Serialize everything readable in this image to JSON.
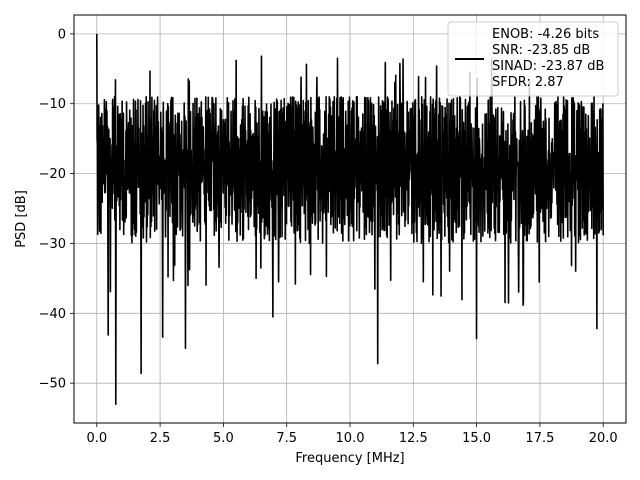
{
  "chart_data": {
    "type": "line",
    "xlabel": "Frequency [MHz]",
    "ylabel": "PSD [dB]",
    "xlim": [
      -0.9,
      20.9
    ],
    "ylim": [
      -55.7,
      2.7
    ],
    "xticks": [
      0.0,
      2.5,
      5.0,
      7.5,
      10.0,
      12.5,
      15.0,
      17.5,
      20.0
    ],
    "xtick_labels": [
      "0.0",
      "2.5",
      "5.0",
      "7.5",
      "10.0",
      "12.5",
      "15.0",
      "17.5",
      "20.0"
    ],
    "yticks": [
      0,
      -10,
      -20,
      -30,
      -40,
      -50
    ],
    "ytick_labels": [
      "0",
      "−10",
      "−20",
      "−30",
      "−40",
      "−50"
    ],
    "grid": true,
    "legend_position": "upper-right",
    "series": [
      {
        "color": "#000000",
        "legend_lines": [
          "ENOB: -4.26 bits",
          "SNR: -23.85 dB",
          "SINAD: -23.87 dB",
          "SFDR: 2.87"
        ],
        "x_range": [
          0.0,
          20.0
        ],
        "num_points": 1600,
        "dc_peak": [
          0.0,
          0.0
        ],
        "typical_band": [
          -30,
          -9
        ],
        "notable_minima": [
          [
            0.45,
            -43.1
          ],
          [
            0.75,
            -53.0
          ],
          [
            1.75,
            -48.6
          ],
          [
            2.6,
            -43.4
          ],
          [
            3.5,
            -45.0
          ],
          [
            6.95,
            -40.5
          ],
          [
            11.1,
            -47.2
          ],
          [
            15.0,
            -43.6
          ],
          [
            19.75,
            -42.2
          ]
        ],
        "notable_maxima": [
          [
            5.5,
            -3.8
          ],
          [
            6.5,
            -3.2
          ],
          [
            9.5,
            -3.5
          ],
          [
            11.4,
            -4.1
          ],
          [
            12.1,
            -3.6
          ],
          [
            15.6,
            -3.7
          ]
        ]
      }
    ]
  }
}
